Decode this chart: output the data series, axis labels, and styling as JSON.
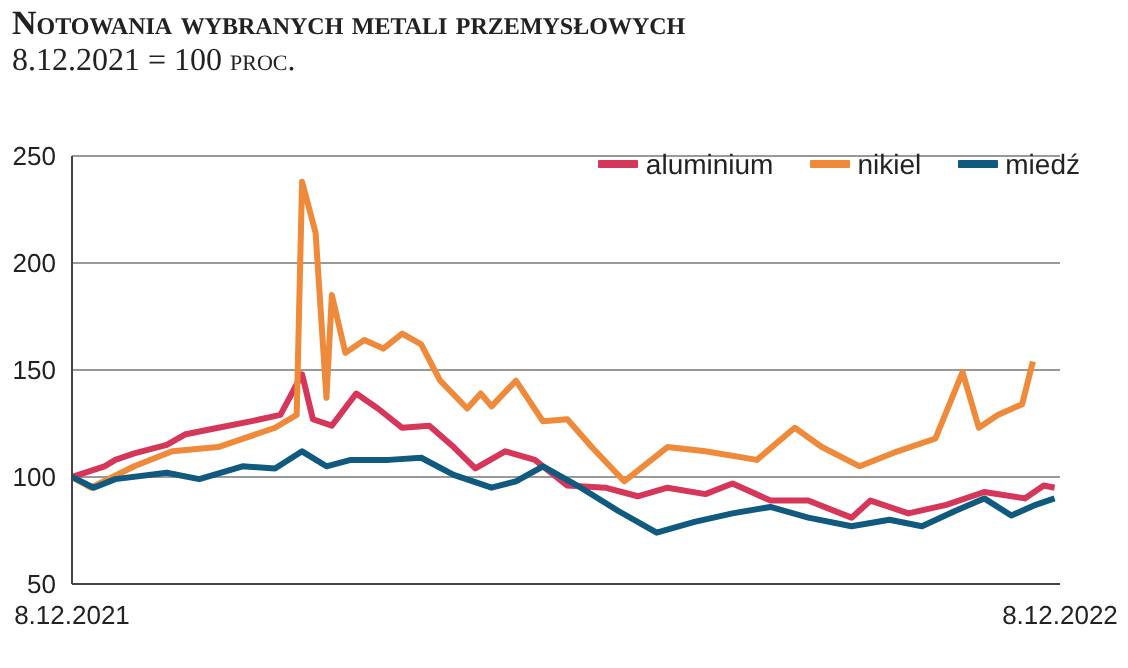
{
  "chart_data": {
    "type": "line",
    "title": "Notowania wybranych metali przemysłowych",
    "subtitle": "8.12.2021 = 100 proc.",
    "xlim": [
      "2021-12-08",
      "2022-12-08"
    ],
    "xticks": [
      {
        "value": "2021-12-08",
        "label": "8.12.2021"
      },
      {
        "value": "2022-12-08",
        "label": "8.12.2022"
      }
    ],
    "ylim": [
      50,
      250
    ],
    "yticks": [
      50,
      100,
      150,
      200,
      250
    ],
    "grid": "y",
    "legend": "top right",
    "marker": "none",
    "line_style": "solid",
    "series": [
      {
        "name": "aluminium",
        "color": "#d6365a",
        "x": [
          "2021-12-08",
          "2021-12-20",
          "2021-12-24",
          "2021-12-31",
          "2022-01-12",
          "2022-01-19",
          "2022-01-31",
          "2022-02-12",
          "2022-02-23",
          "2022-03-03",
          "2022-03-07",
          "2022-03-14",
          "2022-03-23",
          "2022-03-31",
          "2022-04-09",
          "2022-04-19",
          "2022-04-28",
          "2022-05-06",
          "2022-05-17",
          "2022-05-28",
          "2022-05-31",
          "2022-06-09",
          "2022-06-23",
          "2022-07-05",
          "2022-07-16",
          "2022-07-30",
          "2022-08-09",
          "2022-08-23",
          "2022-09-06",
          "2022-09-22",
          "2022-09-29",
          "2022-10-13",
          "2022-10-27",
          "2022-11-10",
          "2022-11-25",
          "2022-12-02",
          "2022-12-06"
        ],
        "values": [
          100,
          105,
          108,
          111,
          115,
          120,
          123,
          126,
          129,
          148,
          127,
          124,
          139,
          132,
          123,
          124,
          114,
          104,
          112,
          108,
          105,
          96,
          95,
          91,
          95,
          92,
          97,
          89,
          89,
          81,
          89,
          83,
          87,
          93,
          90,
          96,
          95
        ]
      },
      {
        "name": "nikiel",
        "color": "#ee8a3a",
        "x": [
          "2021-12-08",
          "2021-12-15",
          "2021-12-31",
          "2022-01-14",
          "2022-01-31",
          "2022-02-21",
          "2022-03-01",
          "2022-03-03",
          "2022-03-08",
          "2022-03-12",
          "2022-03-14",
          "2022-03-19",
          "2022-03-26",
          "2022-04-02",
          "2022-04-09",
          "2022-04-16",
          "2022-04-23",
          "2022-05-03",
          "2022-05-08",
          "2022-05-12",
          "2022-05-21",
          "2022-05-31",
          "2022-06-09",
          "2022-06-18",
          "2022-06-30",
          "2022-07-16",
          "2022-07-30",
          "2022-08-18",
          "2022-09-01",
          "2022-09-11",
          "2022-09-25",
          "2022-10-09",
          "2022-10-23",
          "2022-11-02",
          "2022-11-08",
          "2022-11-15",
          "2022-11-24",
          "2022-11-28"
        ],
        "values": [
          100,
          95,
          105,
          112,
          114,
          123,
          129,
          238,
          214,
          137,
          185,
          158,
          164,
          160,
          167,
          162,
          145,
          132,
          139,
          133,
          145,
          126,
          127,
          114,
          98,
          114,
          112,
          108,
          123,
          114,
          105,
          112,
          118,
          149,
          123,
          129,
          134,
          154
        ]
      },
      {
        "name": "miedź",
        "color": "#0f5a7e",
        "x": [
          "2021-12-08",
          "2021-12-16",
          "2021-12-24",
          "2022-01-12",
          "2022-01-24",
          "2022-02-09",
          "2022-02-21",
          "2022-03-03",
          "2022-03-12",
          "2022-03-21",
          "2022-04-04",
          "2022-04-16",
          "2022-04-28",
          "2022-05-12",
          "2022-05-21",
          "2022-05-31",
          "2022-06-14",
          "2022-06-28",
          "2022-07-12",
          "2022-07-26",
          "2022-08-09",
          "2022-08-23",
          "2022-09-06",
          "2022-09-22",
          "2022-10-06",
          "2022-10-18",
          "2022-10-30",
          "2022-11-10",
          "2022-11-20",
          "2022-11-29",
          "2022-12-06"
        ],
        "values": [
          100,
          95,
          99,
          102,
          99,
          105,
          104,
          112,
          105,
          108,
          108,
          109,
          101,
          95,
          98,
          105,
          95,
          84,
          74,
          79,
          83,
          86,
          81,
          77,
          80,
          77,
          84,
          90,
          82,
          87,
          90
        ]
      }
    ]
  }
}
